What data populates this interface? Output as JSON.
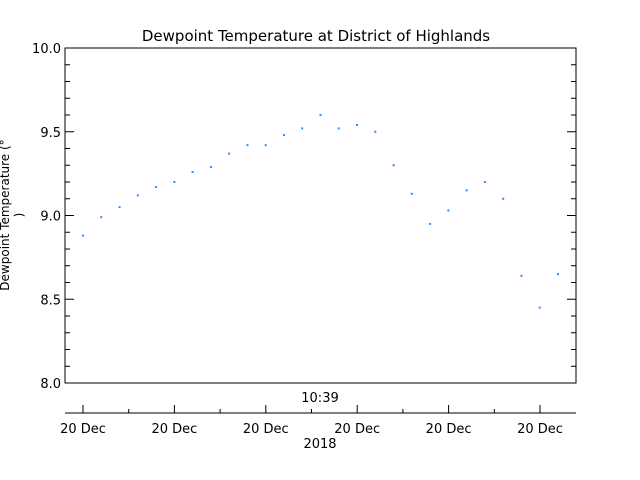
{
  "chart_data": {
    "type": "scatter",
    "title": "Dewpoint Temperature at District of Highlands",
    "ylabel": "Dewpoint Temperature (°",
    "ylabel_line2": ")",
    "time_label": "10:39",
    "year_label": "2018",
    "ylim": [
      8.0,
      10.0
    ],
    "yticks": [
      "8.0",
      "8.5",
      "9.0",
      "9.5",
      "10.0"
    ],
    "xticks": [
      "20 Dec",
      "20 Dec",
      "20 Dec",
      "20 Dec",
      "20 Dec",
      "20 Dec"
    ],
    "grid": false,
    "marker_color": "#1e90ff",
    "series": [
      {
        "values": [
          8.88,
          8.99,
          9.05,
          9.12,
          9.17,
          9.2,
          9.26,
          9.29,
          9.37,
          9.42,
          9.42,
          9.48,
          9.52,
          9.6,
          9.52,
          9.54,
          9.5,
          9.3,
          9.13,
          8.95,
          9.03,
          9.15,
          9.2,
          9.1,
          8.64,
          8.45,
          8.65
        ]
      }
    ]
  }
}
